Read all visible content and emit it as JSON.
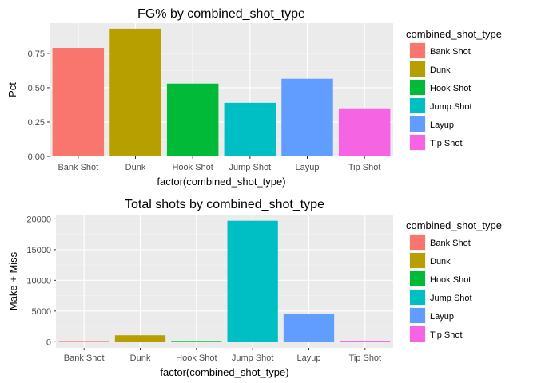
{
  "chart_data": [
    {
      "type": "bar",
      "title": "FG% by combined_shot_type",
      "xlabel": "factor(combined_shot_type)",
      "ylabel": "Pct",
      "categories": [
        "Bank Shot",
        "Dunk",
        "Hook Shot",
        "Jump Shot",
        "Layup",
        "Tip Shot"
      ],
      "values": [
        0.79,
        0.93,
        0.53,
        0.39,
        0.565,
        0.35
      ],
      "ylim": [
        0,
        0.97
      ],
      "yticks": [
        0.0,
        0.25,
        0.5,
        0.75
      ],
      "ytick_labels": [
        "0.00",
        "0.25",
        "0.50",
        "0.75"
      ],
      "legend_title": "combined_shot_type",
      "legend_position": "right",
      "grid": true
    },
    {
      "type": "bar",
      "title": "Total shots by combined_shot_type",
      "xlabel": "factor(combined_shot_type)",
      "ylabel": "Make + Miss",
      "categories": [
        "Bank Shot",
        "Dunk",
        "Hook Shot",
        "Jump Shot",
        "Layup",
        "Tip Shot"
      ],
      "values": [
        120,
        1050,
        130,
        19700,
        4550,
        160
      ],
      "ylim": [
        -1000,
        20700
      ],
      "yticks": [
        0,
        5000,
        10000,
        15000,
        20000
      ],
      "ytick_labels": [
        "0",
        "5000",
        "10000",
        "15000",
        "20000"
      ],
      "legend_title": "combined_shot_type",
      "legend_position": "right",
      "grid": true
    }
  ],
  "colors": {
    "Bank Shot": "#F8766D",
    "Dunk": "#B79F00",
    "Hook Shot": "#00BA38",
    "Jump Shot": "#00BFC4",
    "Layup": "#619CFF",
    "Tip Shot": "#F564E3",
    "panel_bg": "#EBEBEB",
    "grid_major": "#FFFFFF"
  }
}
